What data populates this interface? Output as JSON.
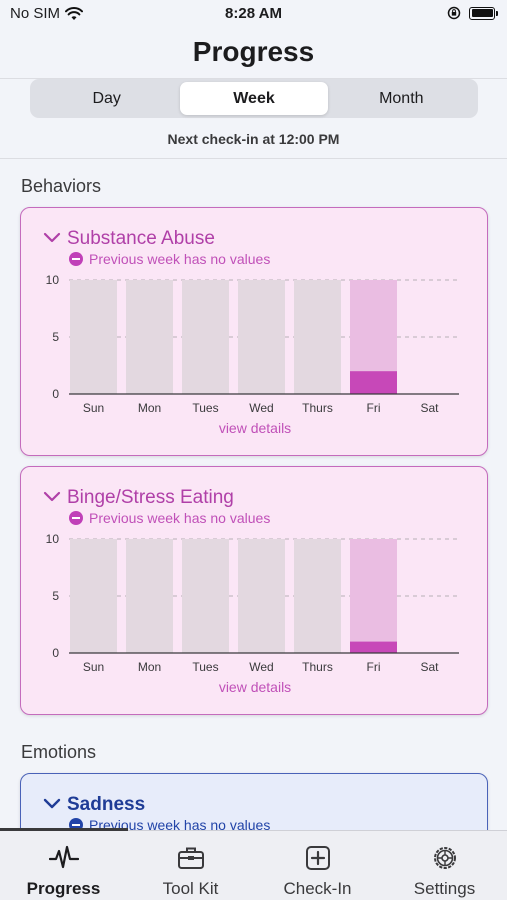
{
  "status_bar": {
    "carrier": "No SIM",
    "time": "8:28 AM"
  },
  "header": {
    "title": "Progress"
  },
  "segments": [
    {
      "label": "Day",
      "active": false
    },
    {
      "label": "Week",
      "active": true
    },
    {
      "label": "Month",
      "active": false
    }
  ],
  "checkin": {
    "text": "Next check-in at 12:00 PM"
  },
  "sections": {
    "behaviors": "Behaviors",
    "emotions": "Emotions"
  },
  "cards": [
    {
      "title": "Substance Abuse",
      "notice": "Previous week has no values",
      "link": "view details",
      "chart_data": {
        "type": "bar",
        "categories": [
          "Sun",
          "Mon",
          "Tues",
          "Wed",
          "Thurs",
          "Fri",
          "Sat"
        ],
        "values": [
          0,
          0,
          0,
          0,
          0,
          2,
          null
        ],
        "ylim": [
          0,
          10
        ],
        "yticks": [
          "10",
          "5",
          "0"
        ],
        "colors": {
          "background": "#e3d8e0",
          "highlight_bg": "#eabde2",
          "value": "#c748b8"
        }
      }
    },
    {
      "title": "Binge/Stress Eating",
      "notice": "Previous week has no values",
      "link": "view details",
      "chart_data": {
        "type": "bar",
        "categories": [
          "Sun",
          "Mon",
          "Tues",
          "Wed",
          "Thurs",
          "Fri",
          "Sat"
        ],
        "values": [
          0,
          0,
          0,
          0,
          0,
          1,
          null
        ],
        "ylim": [
          0,
          10
        ],
        "yticks": [
          "10",
          "5",
          "0"
        ],
        "colors": {
          "background": "#e3d8e0",
          "highlight_bg": "#eabde2",
          "value": "#c748b8"
        }
      }
    }
  ],
  "emotion_card": {
    "title": "Sadness",
    "notice": "Previous week has no values"
  },
  "tabbar": {
    "items": [
      {
        "label": "Progress",
        "icon": "pulse-icon",
        "active": true
      },
      {
        "label": "Tool Kit",
        "icon": "toolbox-icon",
        "active": false
      },
      {
        "label": "Check-In",
        "icon": "plus-square-icon",
        "active": false
      },
      {
        "label": "Settings",
        "icon": "gear-icon",
        "active": false
      }
    ]
  }
}
